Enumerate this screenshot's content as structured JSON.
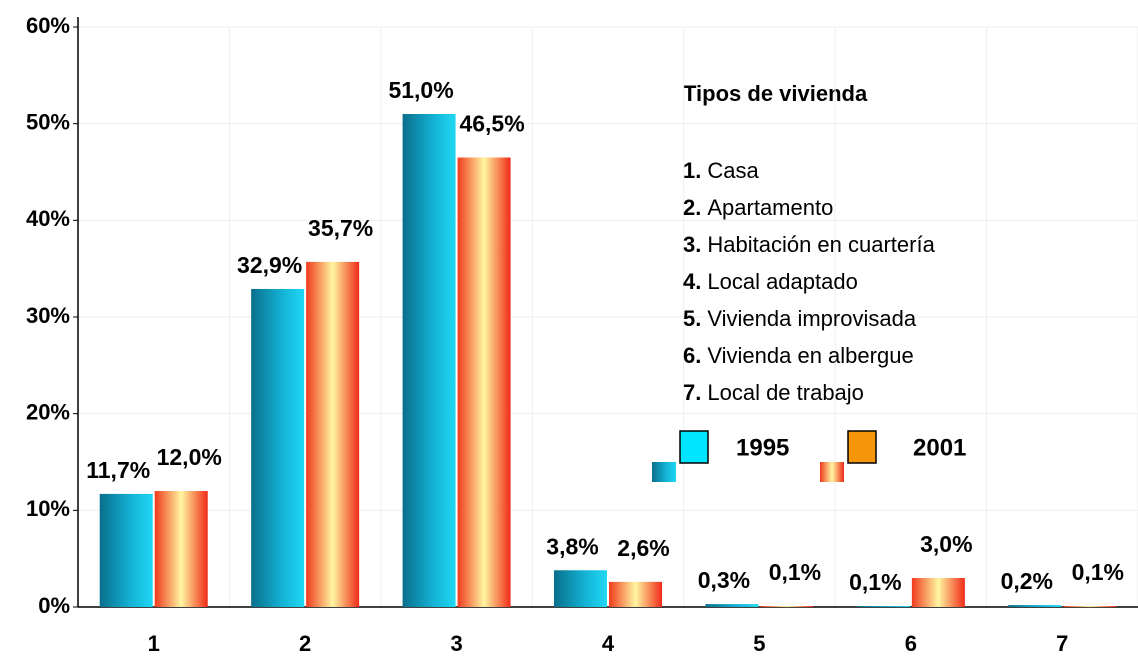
{
  "chart_data": {
    "type": "bar",
    "categories": [
      "1",
      "2",
      "3",
      "4",
      "5",
      "6",
      "7"
    ],
    "series": [
      {
        "name": "1995",
        "color": "#00e5ff",
        "values": [
          11.7,
          32.9,
          51.0,
          3.8,
          0.3,
          0.1,
          0.2
        ],
        "value_labels": [
          "11,7%",
          "32,9%",
          "51,0%",
          "3,8%",
          "0,3%",
          "0,1%",
          "0,2%"
        ]
      },
      {
        "name": "2001",
        "color": "#f5960a",
        "values": [
          12.0,
          35.7,
          46.5,
          2.6,
          0.1,
          3.0,
          0.1
        ],
        "value_labels": [
          "12,0%",
          "35,7%",
          "46,5%",
          "2,6%",
          "0,1%",
          "3,0%",
          "0,1%"
        ]
      }
    ],
    "ylim": [
      0,
      60
    ],
    "yticks": [
      {
        "value": 0,
        "label": "0%"
      },
      {
        "value": 10,
        "label": "10%"
      },
      {
        "value": 20,
        "label": "20%"
      },
      {
        "value": 30,
        "label": "30%"
      },
      {
        "value": 40,
        "label": "40%"
      },
      {
        "value": 50,
        "label": "50%"
      },
      {
        "value": 60,
        "label": "60%"
      }
    ],
    "grid": true,
    "legend": {
      "title": "Tipos de vivienda",
      "items": [
        {
          "number": "1.",
          "text": "Casa"
        },
        {
          "number": "2.",
          "text": "Apartamento"
        },
        {
          "number": "3.",
          "text": "Habitación en cuartería"
        },
        {
          "number": "4.",
          "text": "Local adaptado"
        },
        {
          "number": "5.",
          "text": "Vivienda improvisada"
        },
        {
          "number": "6.",
          "text": "Vivienda en albergue"
        },
        {
          "number": "7.",
          "text": "Local de trabajo"
        }
      ]
    }
  }
}
